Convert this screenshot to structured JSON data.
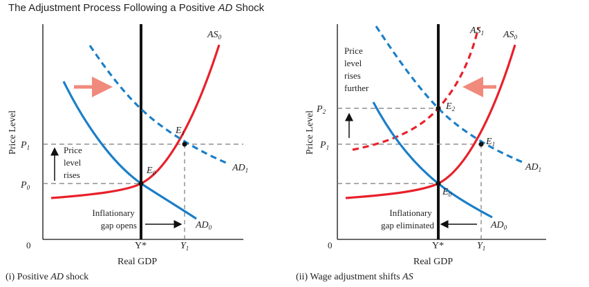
{
  "title": {
    "prefix": "The Adjustment Process Following a Positive ",
    "italic": "AD",
    "suffix": " Shock"
  },
  "colors": {
    "as_curve": "#e8202a",
    "ad_curve": "#1b7fc8",
    "axes": "#111111",
    "guide": "#777777",
    "shift_arrow": "#f08a7c"
  },
  "left": {
    "ylabel": "Price Level",
    "xlabel": "Real GDP",
    "origin": "0",
    "ticks": {
      "p1": "P",
      "p1_sub": "1",
      "p0": "P",
      "p0_sub": "0",
      "ystar": "Y*",
      "y1": "Y",
      "y1_sub": "1"
    },
    "curve_labels": {
      "as": "AS",
      "as_sub": "0",
      "ad0": "AD",
      "ad0_sub": "0",
      "ad1": "AD",
      "ad1_sub": "1"
    },
    "points": {
      "e0": "E",
      "e0_sub": "0",
      "e1": "E",
      "e1_sub": "1"
    },
    "note_lines": [
      "Price",
      "level",
      "rises"
    ],
    "gap_lines": [
      "Inflationary",
      "gap opens"
    ],
    "caption": {
      "prefix": "(i) Positive ",
      "italic": "AD",
      "suffix": " shock"
    }
  },
  "right": {
    "ylabel": "Price Level",
    "xlabel": "Real GDP",
    "origin": "0",
    "ticks": {
      "p1": "P",
      "p1_sub": "1",
      "p2": "P",
      "p2_sub": "2",
      "ystar": "Y*",
      "y1": "Y",
      "y1_sub": "1"
    },
    "curve_labels": {
      "as1": "AS",
      "as1_sub": "1",
      "as0": "AS",
      "as0_sub": "0",
      "ad0": "AD",
      "ad0_sub": "0",
      "ad1": "AD",
      "ad1_sub": "1"
    },
    "points": {
      "e0": "E",
      "e0_sub": "0",
      "e1": "E",
      "e1_sub": "1",
      "e2": "E",
      "e2_sub": "2"
    },
    "note_lines": [
      "Price",
      "level",
      "rises",
      "further"
    ],
    "gap_lines": [
      "Inflationary",
      "gap eliminated"
    ],
    "caption": {
      "prefix": "(ii) Wage adjustment shifts ",
      "italic": "AS",
      "suffix": ""
    }
  }
}
